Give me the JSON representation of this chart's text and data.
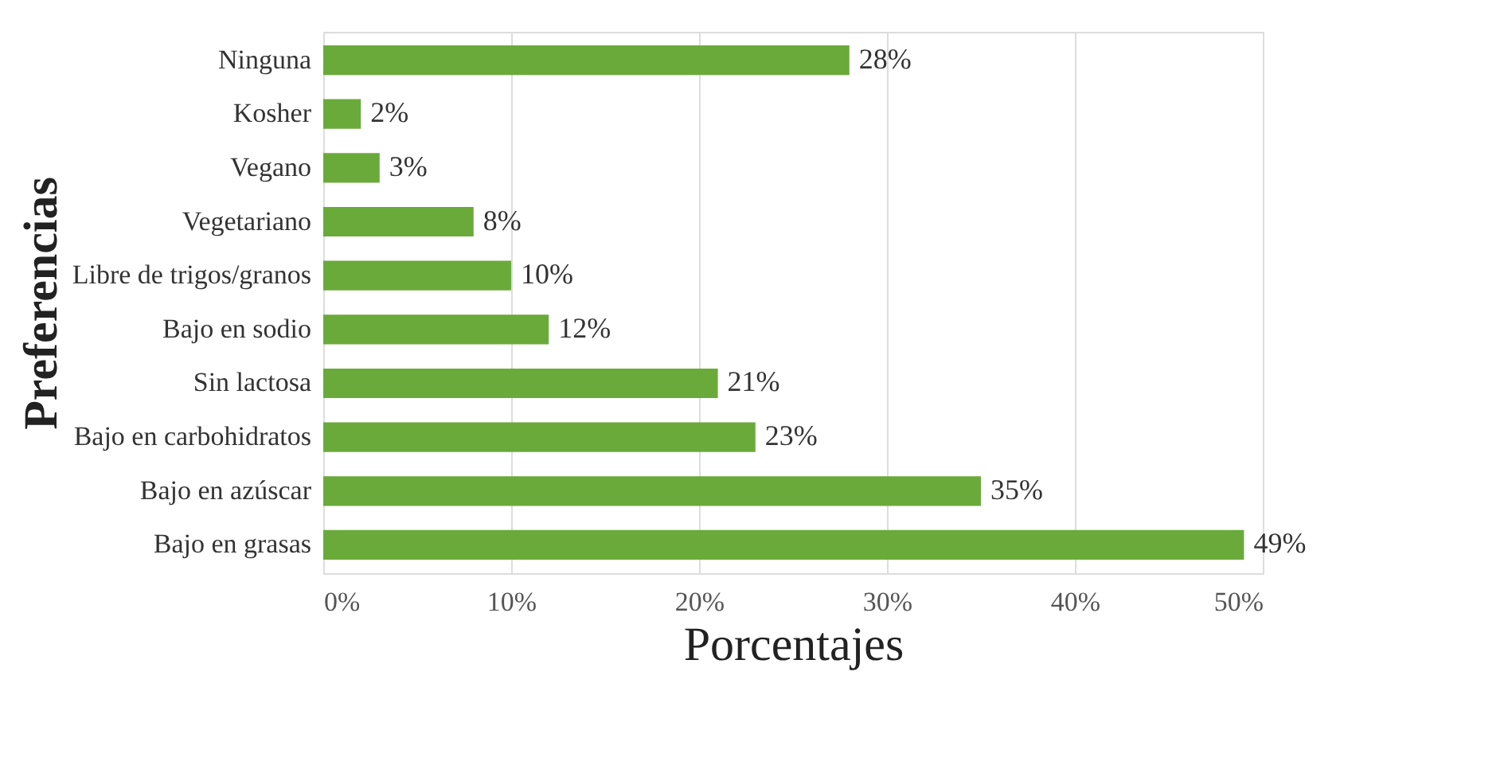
{
  "chart_data": {
    "type": "bar",
    "orientation": "horizontal",
    "xlabel": "Porcentajes",
    "ylabel": "Preferencias",
    "categories": [
      "Ninguna",
      "Kosher",
      "Vegano",
      "Vegetariano",
      "Libre de trigos/granos",
      "Bajo en sodio",
      "Sin lactosa",
      "Bajo en carbohidratos",
      "Bajo en azúscar",
      "Bajo en grasas"
    ],
    "values": [
      28,
      2,
      3,
      8,
      10,
      12,
      21,
      23,
      35,
      49
    ],
    "value_labels": [
      "28%",
      "2%",
      "3%",
      "8%",
      "10%",
      "12%",
      "21%",
      "23%",
      "35%",
      "49%"
    ],
    "color": "#6aaa3a",
    "xlim": [
      0,
      50
    ],
    "xticks": [
      {
        "value": 0,
        "label": "0%"
      },
      {
        "value": 10,
        "label": "10%"
      },
      {
        "value": 20,
        "label": "20%"
      },
      {
        "value": 30,
        "label": "30%"
      },
      {
        "value": 40,
        "label": "40%"
      },
      {
        "value": 50,
        "label": "50%"
      }
    ],
    "grid": "x"
  }
}
